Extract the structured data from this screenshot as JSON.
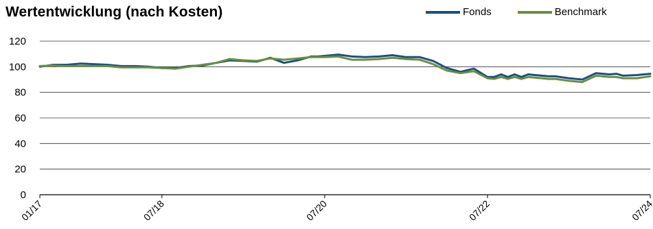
{
  "chart_data": {
    "type": "line",
    "title": "Wertentwicklung (nach Kosten)",
    "xlabel": "",
    "ylabel": "",
    "ylim": [
      0,
      120
    ],
    "yticks": [
      0,
      20,
      40,
      60,
      80,
      100,
      120
    ],
    "grid": true,
    "legend_position": "top-right",
    "x_tick_labels": [
      {
        "t": 0,
        "label": "01/17"
      },
      {
        "t": 18,
        "label": "07/18"
      },
      {
        "t": 42,
        "label": "07/20"
      },
      {
        "t": 66,
        "label": "07/22"
      },
      {
        "t": 90,
        "label": "07/24"
      }
    ],
    "x": [
      0,
      2,
      4,
      6,
      8,
      10,
      12,
      14,
      16,
      18,
      20,
      22,
      24,
      26,
      28,
      30,
      32,
      34,
      36,
      38,
      40,
      41,
      42,
      44,
      46,
      48,
      50,
      52,
      54,
      56,
      58,
      60,
      62,
      64,
      66,
      67,
      68,
      69,
      70,
      71,
      72,
      73,
      74,
      75,
      76,
      78,
      80,
      82,
      84,
      85,
      86,
      88,
      90
    ],
    "series": [
      {
        "name": "Fonds",
        "color": "#1c4f82",
        "values": [
          100,
          101.5,
          101.5,
          102.5,
          102,
          101.5,
          100.5,
          100.5,
          100,
          99,
          99,
          100.5,
          101,
          103,
          105,
          104.5,
          104,
          107,
          103,
          105,
          108,
          108,
          108.5,
          109.5,
          108,
          107.5,
          108,
          109,
          107.5,
          107.5,
          104.5,
          99,
          96,
          98.5,
          92,
          92,
          94,
          92,
          94,
          92,
          94,
          93.5,
          93,
          92.5,
          92.5,
          91,
          90,
          95,
          94,
          94.5,
          93,
          93.5,
          94.5
        ]
      },
      {
        "name": "Benchmark",
        "color": "#6b8e3d",
        "values": [
          100.5,
          101,
          100.5,
          100.5,
          100.5,
          100.5,
          99.5,
          99.5,
          99.5,
          99,
          98.5,
          100,
          101.5,
          103,
          106,
          105,
          104.5,
          106.5,
          105.5,
          106.5,
          107.5,
          107.5,
          107.5,
          108,
          105.5,
          105.5,
          106,
          107,
          106,
          105.5,
          102,
          97,
          95,
          96.5,
          91,
          90.5,
          92,
          90.5,
          92,
          90.5,
          92,
          91.5,
          91,
          90.5,
          90.5,
          89,
          88,
          93,
          92,
          92,
          91,
          91,
          92.5
        ]
      }
    ]
  }
}
